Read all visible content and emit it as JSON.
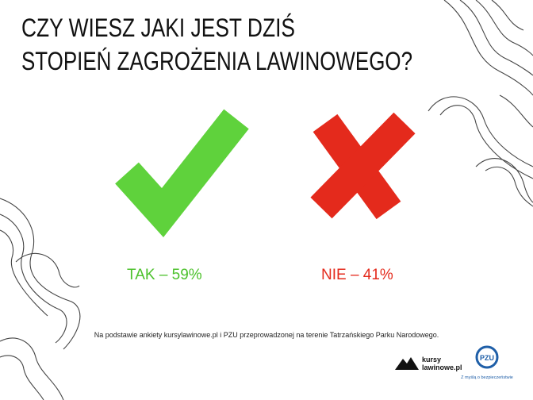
{
  "title": {
    "line1": "CZY WIESZ JAKI JEST DZIŚ",
    "line2": "STOPIEŃ ZAGROŻENIA LAWINOWEGO?"
  },
  "answers": [
    {
      "label": "TAK – 59%"
    },
    {
      "label": "NIE – 41%"
    }
  ],
  "footnote": "Na podstawie ankiety kursylawinowe.pl i PZU przeprowadzonej na terenie Tatrzańskiego Parku Narodowego.",
  "logos": {
    "kursy": {
      "line1": "kursy",
      "line2": "lawinowe.pl"
    },
    "pzu": {
      "name": "PZU",
      "tagline": "Z myślą o bezpieczeństwie"
    }
  }
}
